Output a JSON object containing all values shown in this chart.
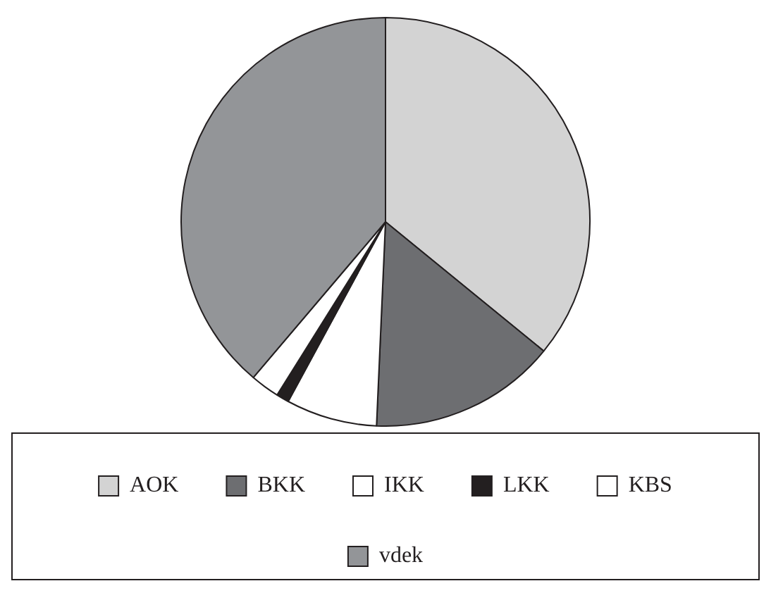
{
  "chart_data": {
    "type": "pie",
    "categories": [
      "AOK",
      "BKK",
      "IKK",
      "LKK",
      "KBS",
      "vdek"
    ],
    "values": [
      35.9,
      14.8,
      7.2,
      1.0,
      2.3,
      38.8
    ],
    "colors": [
      "#d3d3d3",
      "#6d6e71",
      "#ffffff",
      "#231f20",
      "#ffffff",
      "#939598"
    ],
    "legend": "bottom"
  }
}
